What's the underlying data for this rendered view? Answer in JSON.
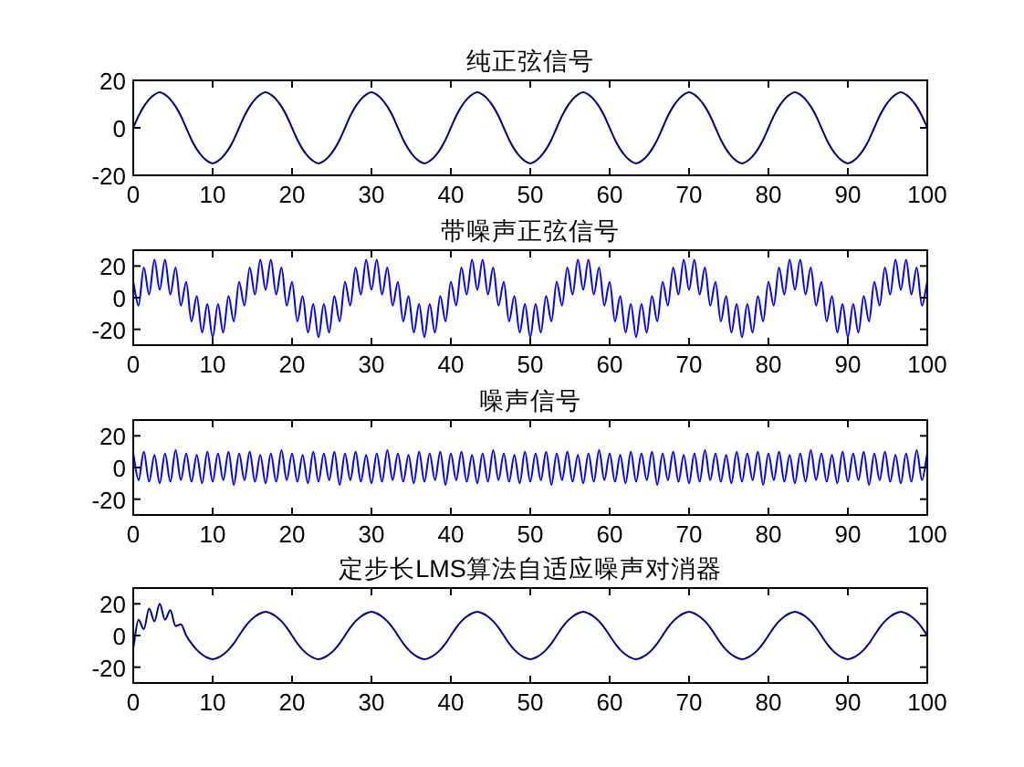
{
  "chart_data": [
    {
      "type": "line",
      "title": "纯正弦信号",
      "xlim": [
        0,
        100
      ],
      "xticks": [
        0,
        10,
        20,
        30,
        40,
        50,
        60,
        70,
        80,
        90,
        100
      ],
      "ylim": [
        -20,
        20
      ],
      "yticks": [
        -20,
        0,
        20
      ],
      "x": [
        0,
        0.67,
        1.33,
        2,
        2.67,
        3.33,
        4,
        4.67,
        5.33,
        6,
        6.67,
        7.33,
        8,
        8.67,
        9.33,
        10,
        10.67,
        11.33,
        12,
        12.67,
        13.33,
        14,
        14.67,
        15.33,
        16,
        16.67,
        17.33,
        18,
        18.67,
        19.33,
        20,
        20.67,
        21.33,
        22,
        22.67,
        23.33,
        24,
        24.67,
        25.33,
        26,
        26.67,
        27.33,
        28,
        28.67,
        29.33,
        30,
        30.67,
        31.33,
        32,
        32.67,
        33.33,
        34,
        34.67,
        35.33,
        36,
        36.67,
        37.33,
        38,
        38.67,
        39.33,
        40,
        40.67,
        41.33,
        42,
        42.67,
        43.33,
        44,
        44.67,
        45.33,
        46,
        46.67,
        47.33,
        48,
        48.67,
        49.33,
        50,
        50.67,
        51.33,
        52,
        52.67,
        53.33,
        54,
        54.67,
        55.33,
        56,
        56.67,
        57.33,
        58,
        58.67,
        59.33,
        60,
        60.67,
        61.33,
        62,
        62.67,
        63.33,
        64,
        64.67,
        65.33,
        66,
        66.67,
        67.33,
        68,
        68.67,
        69.33,
        70,
        70.67,
        71.33,
        72,
        72.67,
        73.33,
        74,
        74.67,
        75.33,
        76,
        76.67,
        77.33,
        78,
        78.67,
        79.33,
        80,
        80.67,
        81.33,
        82,
        82.67,
        83.33,
        84,
        84.67,
        85.33,
        86,
        86.67,
        87.33,
        88,
        88.67,
        89.33,
        90,
        90.67,
        91.33,
        92,
        92.67,
        93.33,
        94,
        94.67,
        95.33,
        96,
        96.67,
        97.33,
        98,
        98.67,
        99.33,
        100
      ],
      "series": [
        {
          "color": "#000080",
          "values": [
            0,
            5,
            9,
            12,
            14,
            15,
            14,
            12,
            9,
            5,
            0,
            -5,
            -9,
            -12,
            -14,
            -15,
            -14,
            -12,
            -9,
            -5,
            0,
            5,
            9,
            12,
            14,
            15,
            14,
            12,
            9,
            5,
            0,
            -5,
            -9,
            -12,
            -14,
            -15,
            -14,
            -12,
            -9,
            -5,
            0,
            5,
            9,
            12,
            14,
            15,
            14,
            12,
            9,
            5,
            0,
            -5,
            -9,
            -12,
            -14,
            -15,
            -14,
            -12,
            -9,
            -5,
            0,
            5,
            9,
            12,
            14,
            15,
            14,
            12,
            9,
            5,
            0,
            -5,
            -9,
            -12,
            -14,
            -15,
            -14,
            -12,
            -9,
            -5,
            0,
            5,
            9,
            12,
            14,
            15,
            14,
            12,
            9,
            5,
            0,
            -5,
            -9,
            -12,
            -14,
            -15,
            -14,
            -12,
            -9,
            -5,
            0,
            5,
            9,
            12,
            14,
            15,
            14,
            12,
            9,
            5,
            0,
            -5,
            -9,
            -12,
            -14,
            -15,
            -14,
            -12,
            -9,
            -5,
            0,
            5,
            9,
            12,
            14,
            15,
            14,
            12,
            9,
            5,
            0,
            -5,
            -9,
            -12,
            -14,
            -15,
            -14,
            -12,
            -9,
            -5,
            0,
            5,
            9,
            12,
            14,
            15,
            14,
            12,
            9,
            5,
            0
          ]
        }
      ]
    },
    {
      "type": "line",
      "title": "带噪声正弦信号",
      "xlim": [
        0,
        100
      ],
      "xticks": [
        0,
        10,
        20,
        30,
        40,
        50,
        60,
        70,
        80,
        90,
        100
      ],
      "ylim": [
        -30,
        30
      ],
      "yticks": [
        -20,
        0,
        20
      ],
      "x": [
        0,
        0.67,
        1.33,
        2,
        2.67,
        3.33,
        4,
        4.67,
        5.33,
        6,
        6.67,
        7.33,
        8,
        8.67,
        9.33,
        10,
        10.67,
        11.33,
        12,
        12.67,
        13.33,
        14,
        14.67,
        15.33,
        16,
        16.67,
        17.33,
        18,
        18.67,
        19.33,
        20,
        20.67,
        21.33,
        22,
        22.67,
        23.33,
        24,
        24.67,
        25.33,
        26,
        26.67,
        27.33,
        28,
        28.67,
        29.33,
        30,
        30.67,
        31.33,
        32,
        32.67,
        33.33,
        34,
        34.67,
        35.33,
        36,
        36.67,
        37.33,
        38,
        38.67,
        39.33,
        40,
        40.67,
        41.33,
        42,
        42.67,
        43.33,
        44,
        44.67,
        45.33,
        46,
        46.67,
        47.33,
        48,
        48.67,
        49.33,
        50,
        50.67,
        51.33,
        52,
        52.67,
        53.33,
        54,
        54.67,
        55.33,
        56,
        56.67,
        57.33,
        58,
        58.67,
        59.33,
        60,
        60.67,
        61.33,
        62,
        62.67,
        63.33,
        64,
        64.67,
        65.33,
        66,
        66.67,
        67.33,
        68,
        68.67,
        69.33,
        70,
        70.67,
        71.33,
        72,
        72.67,
        73.33,
        74,
        74.67,
        75.33,
        76,
        76.67,
        77.33,
        78,
        78.67,
        79.33,
        80,
        80.67,
        81.33,
        82,
        82.67,
        83.33,
        84,
        84.67,
        85.33,
        86,
        86.67,
        87.33,
        88,
        88.67,
        89.33,
        90,
        90.67,
        91.33,
        92,
        92.67,
        93.33,
        94,
        94.67,
        95.33,
        96,
        96.67,
        97.33,
        98,
        98.67,
        99.33,
        100
      ],
      "series": [
        {
          "color": "#0000ff",
          "values": [
            10,
            -5,
            19,
            2,
            24,
            5,
            24,
            2,
            19,
            -5,
            10,
            -15,
            1,
            -22,
            -4,
            -25,
            -4,
            -22,
            1,
            -15,
            10,
            -5,
            19,
            2,
            24,
            5,
            24,
            2,
            19,
            -5,
            10,
            -15,
            1,
            -22,
            -4,
            -25,
            -4,
            -22,
            1,
            -15,
            10,
            -5,
            19,
            2,
            24,
            5,
            24,
            2,
            19,
            -5,
            10,
            -15,
            1,
            -22,
            -4,
            -25,
            -4,
            -22,
            1,
            -15,
            10,
            -5,
            19,
            2,
            24,
            5,
            24,
            2,
            19,
            -5,
            10,
            -15,
            1,
            -22,
            -4,
            -25,
            -4,
            -22,
            1,
            -15,
            10,
            -5,
            19,
            2,
            24,
            5,
            24,
            2,
            19,
            -5,
            10,
            -15,
            1,
            -22,
            -4,
            -25,
            -4,
            -22,
            1,
            -15,
            10,
            -5,
            19,
            2,
            24,
            5,
            24,
            2,
            19,
            -5,
            10,
            -15,
            1,
            -22,
            -4,
            -25,
            -4,
            -22,
            1,
            -15,
            10,
            -5,
            19,
            2,
            24,
            5,
            24,
            2,
            19,
            -5,
            10,
            -15,
            1,
            -22,
            -4,
            -25,
            -4,
            -22,
            1,
            -15,
            10,
            -5,
            19,
            2,
            24,
            5,
            24,
            2,
            19,
            -5,
            10
          ]
        }
      ]
    },
    {
      "type": "line",
      "title": "噪声信号",
      "xlim": [
        0,
        100
      ],
      "xticks": [
        0,
        10,
        20,
        30,
        40,
        50,
        60,
        70,
        80,
        90,
        100
      ],
      "ylim": [
        -30,
        30
      ],
      "yticks": [
        -20,
        0,
        20
      ],
      "x": [
        0,
        0.67,
        1.33,
        2,
        2.67,
        3.33,
        4,
        4.67,
        5.33,
        6,
        6.67,
        7.33,
        8,
        8.67,
        9.33,
        10,
        10.67,
        11.33,
        12,
        12.67,
        13.33,
        14,
        14.67,
        15.33,
        16,
        16.67,
        17.33,
        18,
        18.67,
        19.33,
        20,
        20.67,
        21.33,
        22,
        22.67,
        23.33,
        24,
        24.67,
        25.33,
        26,
        26.67,
        27.33,
        28,
        28.67,
        29.33,
        30,
        30.67,
        31.33,
        32,
        32.67,
        33.33,
        34,
        34.67,
        35.33,
        36,
        36.67,
        37.33,
        38,
        38.67,
        39.33,
        40,
        40.67,
        41.33,
        42,
        42.67,
        43.33,
        44,
        44.67,
        45.33,
        46,
        46.67,
        47.33,
        48,
        48.67,
        49.33,
        50,
        50.67,
        51.33,
        52,
        52.67,
        53.33,
        54,
        54.67,
        55.33,
        56,
        56.67,
        57.33,
        58,
        58.67,
        59.33,
        60,
        60.67,
        61.33,
        62,
        62.67,
        63.33,
        64,
        64.67,
        65.33,
        66,
        66.67,
        67.33,
        68,
        68.67,
        69.33,
        70,
        70.67,
        71.33,
        72,
        72.67,
        73.33,
        74,
        74.67,
        75.33,
        76,
        76.67,
        77.33,
        78,
        78.67,
        79.33,
        80,
        80.67,
        81.33,
        82,
        82.67,
        83.33,
        84,
        84.67,
        85.33,
        86,
        86.67,
        87.33,
        88,
        88.67,
        89.33,
        90,
        90.67,
        91.33,
        92,
        92.67,
        93.33,
        94,
        94.67,
        95.33,
        96,
        96.67,
        97.33,
        98,
        98.67,
        99.33,
        100
      ],
      "series": [
        {
          "color": "#0000ff",
          "values": [
            9,
            -8,
            10,
            -9,
            8,
            -10,
            9,
            -9,
            11,
            -8,
            9,
            -9,
            8,
            -10,
            10,
            -9,
            9,
            -8,
            10,
            -11,
            9,
            -8,
            10,
            -9,
            8,
            -10,
            9,
            -9,
            11,
            -8,
            9,
            -9,
            8,
            -10,
            10,
            -9,
            9,
            -8,
            10,
            -11,
            9,
            -8,
            10,
            -9,
            8,
            -10,
            9,
            -9,
            11,
            -8,
            9,
            -9,
            8,
            -10,
            10,
            -9,
            9,
            -8,
            10,
            -11,
            9,
            -8,
            10,
            -9,
            8,
            -10,
            9,
            -9,
            11,
            -8,
            9,
            -9,
            8,
            -10,
            10,
            -9,
            9,
            -8,
            10,
            -11,
            9,
            -8,
            10,
            -9,
            8,
            -10,
            9,
            -9,
            11,
            -8,
            9,
            -9,
            8,
            -10,
            10,
            -9,
            9,
            -8,
            10,
            -11,
            9,
            -8,
            10,
            -9,
            8,
            -10,
            9,
            -9,
            11,
            -8,
            9,
            -9,
            8,
            -10,
            10,
            -9,
            9,
            -8,
            10,
            -11,
            9,
            -8,
            10,
            -9,
            8,
            -10,
            9,
            -9,
            11,
            -8,
            9,
            -9,
            8,
            -10,
            10,
            -9,
            9,
            -8,
            10,
            -11,
            9,
            -8,
            10,
            -9,
            8,
            -10,
            9,
            -9,
            11,
            -8,
            9
          ]
        }
      ]
    },
    {
      "type": "line",
      "title": "定步长LMS算法自适应噪声对消器",
      "xlim": [
        0,
        100
      ],
      "xticks": [
        0,
        10,
        20,
        30,
        40,
        50,
        60,
        70,
        80,
        90,
        100
      ],
      "ylim": [
        -30,
        30
      ],
      "yticks": [
        -20,
        0,
        20
      ],
      "x": [
        0,
        0.67,
        1.33,
        2,
        2.67,
        3.33,
        4,
        4.67,
        5.33,
        6,
        6.67,
        7.33,
        8,
        8.67,
        9.33,
        10,
        10.67,
        11.33,
        12,
        12.67,
        13.33,
        14,
        14.67,
        15.33,
        16,
        16.67,
        17.33,
        18,
        18.67,
        19.33,
        20,
        20.67,
        21.33,
        22,
        22.67,
        23.33,
        24,
        24.67,
        25.33,
        26,
        26.67,
        27.33,
        28,
        28.67,
        29.33,
        30,
        30.67,
        31.33,
        32,
        32.67,
        33.33,
        34,
        34.67,
        35.33,
        36,
        36.67,
        37.33,
        38,
        38.67,
        39.33,
        40,
        40.67,
        41.33,
        42,
        42.67,
        43.33,
        44,
        44.67,
        45.33,
        46,
        46.67,
        47.33,
        48,
        48.67,
        49.33,
        50,
        50.67,
        51.33,
        52,
        52.67,
        53.33,
        54,
        54.67,
        55.33,
        56,
        56.67,
        57.33,
        58,
        58.67,
        59.33,
        60,
        60.67,
        61.33,
        62,
        62.67,
        63.33,
        64,
        64.67,
        65.33,
        66,
        66.67,
        67.33,
        68,
        68.67,
        69.33,
        70,
        70.67,
        71.33,
        72,
        72.67,
        73.33,
        74,
        74.67,
        75.33,
        76,
        76.67,
        77.33,
        78,
        78.67,
        79.33,
        80,
        80.67,
        81.33,
        82,
        82.67,
        83.33,
        84,
        84.67,
        85.33,
        86,
        86.67,
        87.33,
        88,
        88.67,
        89.33,
        90,
        90.67,
        91.33,
        92,
        92.67,
        93.33,
        94,
        94.67,
        95.33,
        96,
        96.67,
        97.33,
        98,
        98.67,
        99.33,
        100
      ],
      "series": [
        {
          "color": "#00008b",
          "values": [
            -8,
            10,
            4,
            17,
            9,
            20,
            10,
            16,
            6,
            7,
            0,
            -5,
            -9,
            -12,
            -14,
            -15,
            -14,
            -12,
            -9,
            -5,
            0,
            5,
            9,
            12,
            14,
            15,
            14,
            12,
            9,
            5,
            0,
            -5,
            -9,
            -12,
            -14,
            -15,
            -14,
            -12,
            -9,
            -5,
            0,
            5,
            9,
            12,
            14,
            15,
            14,
            12,
            9,
            5,
            0,
            -5,
            -9,
            -12,
            -14,
            -15,
            -14,
            -12,
            -9,
            -5,
            0,
            5,
            9,
            12,
            14,
            15,
            14,
            12,
            9,
            5,
            0,
            -5,
            -9,
            -12,
            -14,
            -15,
            -14,
            -12,
            -9,
            -5,
            0,
            5,
            9,
            12,
            14,
            15,
            14,
            12,
            9,
            5,
            0,
            -5,
            -9,
            -12,
            -14,
            -15,
            -14,
            -12,
            -9,
            -5,
            0,
            5,
            9,
            12,
            14,
            15,
            14,
            12,
            9,
            5,
            0,
            -5,
            -9,
            -12,
            -14,
            -15,
            -14,
            -12,
            -9,
            -5,
            0,
            5,
            9,
            12,
            14,
            15,
            14,
            12,
            9,
            5,
            0,
            -5,
            -9,
            -12,
            -14,
            -15,
            -14,
            -12,
            -9,
            -5,
            0,
            5,
            9,
            12,
            14,
            15,
            14,
            12,
            9,
            5,
            0
          ]
        }
      ]
    }
  ]
}
